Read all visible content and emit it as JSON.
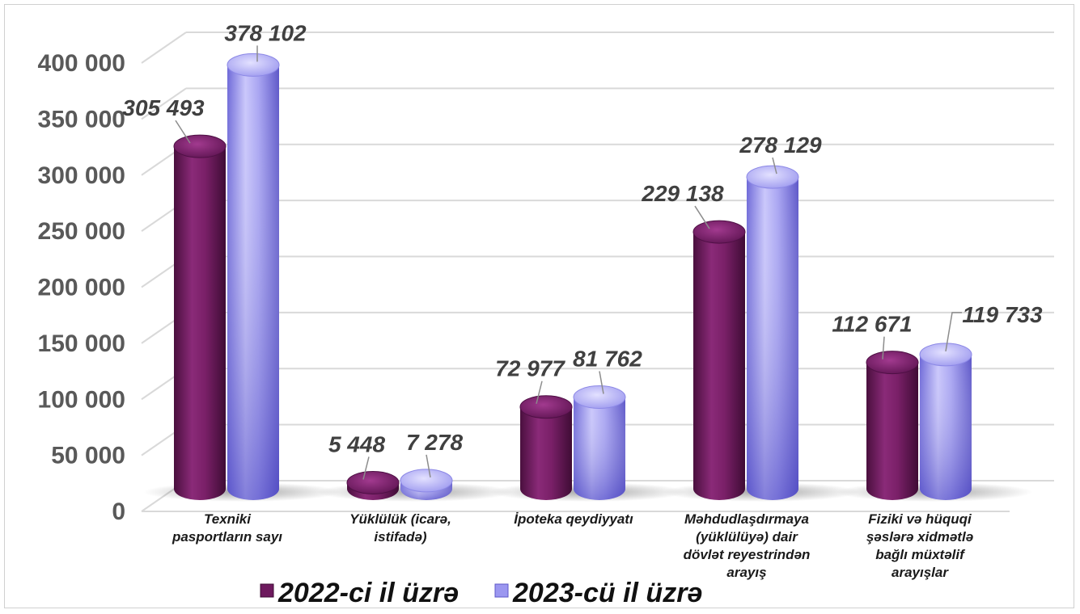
{
  "chart_data": {
    "type": "bar",
    "categories": [
      [
        "Texniki",
        "pasportların sayı"
      ],
      [
        "Yüklülük (icarə,",
        "istifadə)"
      ],
      [
        "İpoteka qeydiyyatı"
      ],
      [
        "Məhdudlaşdırmaya",
        "(yüklülüyə) dair",
        "dövlət reyestrindən",
        "arayış"
      ],
      [
        "Fiziki və hüquqi",
        "şəslərə xidmətlə",
        "bağlı müxtəlif",
        "arayışlar"
      ]
    ],
    "series": [
      {
        "name": "2022-ci il üzrə",
        "color": "#6e1a5e",
        "values": [
          305493,
          5448,
          72977,
          229138,
          112671
        ],
        "labels": [
          "305 493",
          "5 448",
          "72 977",
          "229 138",
          "112 671"
        ]
      },
      {
        "name": "2023-cü il üzrə",
        "color": "#8a86ea",
        "values": [
          378102,
          7278,
          81762,
          278129,
          119733
        ],
        "labels": [
          "378 102",
          "7 278",
          "81 762",
          "278 129",
          "119 733"
        ]
      }
    ],
    "y_ticks": [
      {
        "value": 0,
        "label": "0"
      },
      {
        "value": 50000,
        "label": "50 000"
      },
      {
        "value": 100000,
        "label": "100 000"
      },
      {
        "value": 150000,
        "label": "150 000"
      },
      {
        "value": 200000,
        "label": "200 000"
      },
      {
        "value": 250000,
        "label": "250 000"
      },
      {
        "value": 300000,
        "label": "300 000"
      },
      {
        "value": 350000,
        "label": "350 000"
      },
      {
        "value": 400000,
        "label": "400 000"
      }
    ],
    "ylim": [
      0,
      400000
    ],
    "grid": true,
    "legend_position": "bottom",
    "style": "3d-cylinder"
  }
}
